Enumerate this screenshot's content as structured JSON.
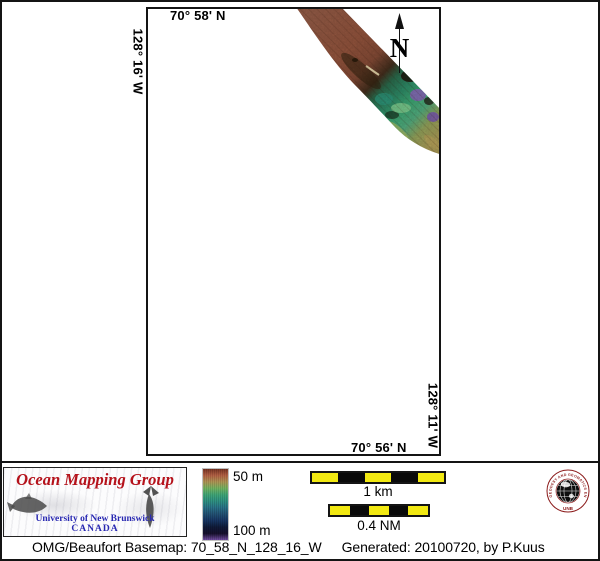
{
  "map": {
    "top_label": "70° 58' N",
    "left_label": "128° 16' W",
    "right_label": "128° 11' W",
    "bottom_label": "70° 56' N",
    "north_arrow_label": "N"
  },
  "legend": {
    "omg_logo": {
      "title": "Ocean Mapping Group",
      "subtitle": "University of New Brunswick",
      "country": "CANADA"
    },
    "colorbar": {
      "top_label": "50 m",
      "bottom_label": "100 m",
      "colors": [
        "#6e3020",
        "#a85a40",
        "#a38a4e",
        "#6aa85a",
        "#3a9a6e",
        "#2a8578",
        "#26687c",
        "#1f4a6a",
        "#15305a",
        "#0d1834",
        "#140e28",
        "#6a4898"
      ]
    },
    "scalebars": [
      {
        "label": "1 km",
        "segments": [
          "#f2e912",
          "#0a0a0a",
          "#f2e912",
          "#0a0a0a",
          "#f2e912"
        ]
      },
      {
        "label": "0.4 NM",
        "segments": [
          "#f2e912",
          "#0a0a0a",
          "#f2e912",
          "#0a0a0a",
          "#f2e912"
        ]
      }
    ],
    "seal": {
      "ring_text": "GEODESY AND GEOMATICS ENGINEERING",
      "bottom_text": "UNB"
    }
  },
  "caption": {
    "left": "OMG/Beaufort Basemap: 70_58_N_128_16_W",
    "right": "Generated: 20100720, by P.Kuus"
  },
  "colors": {
    "frame": "#141414",
    "accent_red": "#b5121b",
    "unb_blue": "#2929b2",
    "seal_red": "#8b1a1a",
    "scalebar_yellow": "#f2e912",
    "swath_shallow_brown": "#9a5f49",
    "swath_deep_green": "#3fae78",
    "swath_purple": "#8d6cc0"
  }
}
